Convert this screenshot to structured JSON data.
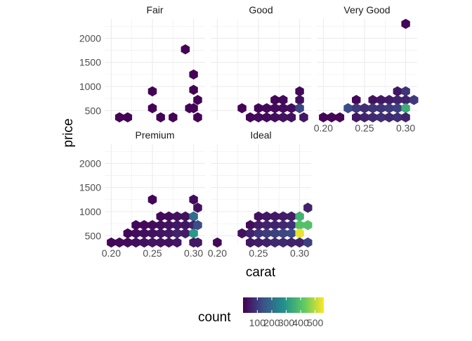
{
  "chart_data": {
    "type": "hexbin",
    "facet_variable": "cut",
    "facets": [
      {
        "label": "Fair",
        "points": [
          [
            0.21,
            360,
            4
          ],
          [
            0.22,
            360,
            6
          ],
          [
            0.25,
            900,
            3
          ],
          [
            0.25,
            550,
            4
          ],
          [
            0.26,
            360,
            5
          ],
          [
            0.275,
            360,
            5
          ],
          [
            0.29,
            1770,
            6
          ],
          [
            0.3,
            1250,
            5
          ],
          [
            0.3,
            930,
            4
          ],
          [
            0.295,
            550,
            6
          ],
          [
            0.3,
            550,
            8
          ],
          [
            0.305,
            720,
            5
          ],
          [
            0.305,
            360,
            5
          ]
        ]
      },
      {
        "label": "Good",
        "points": [
          [
            0.23,
            550,
            8
          ],
          [
            0.24,
            360,
            10
          ],
          [
            0.25,
            550,
            12
          ],
          [
            0.25,
            360,
            20
          ],
          [
            0.26,
            550,
            15
          ],
          [
            0.26,
            360,
            18
          ],
          [
            0.27,
            720,
            12
          ],
          [
            0.27,
            550,
            20
          ],
          [
            0.27,
            360,
            25
          ],
          [
            0.28,
            720,
            15
          ],
          [
            0.28,
            550,
            22
          ],
          [
            0.28,
            360,
            30
          ],
          [
            0.29,
            550,
            25
          ],
          [
            0.29,
            360,
            30
          ],
          [
            0.3,
            900,
            15
          ],
          [
            0.3,
            720,
            25
          ],
          [
            0.3,
            550,
            120
          ],
          [
            0.305,
            360,
            40
          ]
        ]
      },
      {
        "label": "Very Good",
        "points": [
          [
            0.2,
            360,
            5
          ],
          [
            0.21,
            360,
            5
          ],
          [
            0.22,
            360,
            8
          ],
          [
            0.23,
            550,
            130
          ],
          [
            0.24,
            720,
            15
          ],
          [
            0.24,
            550,
            100
          ],
          [
            0.24,
            360,
            40
          ],
          [
            0.25,
            550,
            80
          ],
          [
            0.25,
            360,
            60
          ],
          [
            0.26,
            720,
            30
          ],
          [
            0.26,
            550,
            90
          ],
          [
            0.26,
            360,
            70
          ],
          [
            0.27,
            720,
            40
          ],
          [
            0.27,
            550,
            90
          ],
          [
            0.27,
            360,
            80
          ],
          [
            0.28,
            720,
            50
          ],
          [
            0.28,
            550,
            100
          ],
          [
            0.28,
            360,
            70
          ],
          [
            0.29,
            900,
            40
          ],
          [
            0.29,
            720,
            60
          ],
          [
            0.29,
            550,
            110
          ],
          [
            0.29,
            360,
            80
          ],
          [
            0.3,
            2300,
            10
          ],
          [
            0.3,
            900,
            90
          ],
          [
            0.3,
            720,
            60
          ],
          [
            0.3,
            550,
            350
          ],
          [
            0.3,
            360,
            60
          ],
          [
            0.31,
            720,
            100
          ]
        ]
      },
      {
        "label": "Premium",
        "points": [
          [
            0.2,
            360,
            10
          ],
          [
            0.21,
            360,
            15
          ],
          [
            0.22,
            550,
            12
          ],
          [
            0.22,
            360,
            20
          ],
          [
            0.23,
            720,
            10
          ],
          [
            0.23,
            550,
            20
          ],
          [
            0.23,
            360,
            25
          ],
          [
            0.24,
            720,
            15
          ],
          [
            0.24,
            550,
            25
          ],
          [
            0.24,
            360,
            30
          ],
          [
            0.25,
            1250,
            10
          ],
          [
            0.25,
            720,
            20
          ],
          [
            0.25,
            550,
            30
          ],
          [
            0.25,
            360,
            35
          ],
          [
            0.26,
            900,
            15
          ],
          [
            0.26,
            720,
            25
          ],
          [
            0.26,
            550,
            35
          ],
          [
            0.26,
            360,
            30
          ],
          [
            0.27,
            900,
            20
          ],
          [
            0.27,
            720,
            30
          ],
          [
            0.27,
            550,
            40
          ],
          [
            0.27,
            360,
            30
          ],
          [
            0.28,
            900,
            30
          ],
          [
            0.28,
            720,
            40
          ],
          [
            0.28,
            550,
            60
          ],
          [
            0.28,
            360,
            40
          ],
          [
            0.29,
            900,
            30
          ],
          [
            0.29,
            720,
            35
          ],
          [
            0.29,
            550,
            50
          ],
          [
            0.3,
            1250,
            20
          ],
          [
            0.3,
            900,
            200
          ],
          [
            0.3,
            720,
            60
          ],
          [
            0.3,
            550,
            300
          ],
          [
            0.3,
            360,
            40
          ],
          [
            0.305,
            1080,
            30
          ],
          [
            0.305,
            720,
            130
          ],
          [
            0.305,
            360,
            40
          ]
        ]
      },
      {
        "label": "Ideal",
        "points": [
          [
            0.2,
            360,
            10
          ],
          [
            0.23,
            550,
            30
          ],
          [
            0.24,
            720,
            20
          ],
          [
            0.24,
            550,
            60
          ],
          [
            0.24,
            360,
            40
          ],
          [
            0.25,
            900,
            30
          ],
          [
            0.25,
            720,
            50
          ],
          [
            0.25,
            550,
            90
          ],
          [
            0.25,
            360,
            50
          ],
          [
            0.26,
            900,
            40
          ],
          [
            0.26,
            720,
            60
          ],
          [
            0.26,
            550,
            100
          ],
          [
            0.26,
            360,
            60
          ],
          [
            0.27,
            900,
            40
          ],
          [
            0.27,
            720,
            60
          ],
          [
            0.27,
            550,
            110
          ],
          [
            0.27,
            360,
            70
          ],
          [
            0.28,
            900,
            50
          ],
          [
            0.28,
            720,
            70
          ],
          [
            0.28,
            550,
            120
          ],
          [
            0.28,
            360,
            70
          ],
          [
            0.29,
            900,
            50
          ],
          [
            0.29,
            720,
            80
          ],
          [
            0.29,
            550,
            130
          ],
          [
            0.29,
            360,
            60
          ],
          [
            0.3,
            900,
            360
          ],
          [
            0.3,
            720,
            400
          ],
          [
            0.3,
            550,
            540
          ],
          [
            0.3,
            360,
            60
          ],
          [
            0.31,
            1080,
            60
          ],
          [
            0.31,
            720,
            400
          ],
          [
            0.31,
            360,
            110
          ]
        ]
      }
    ],
    "xlabel": "carat",
    "ylabel": "price",
    "x_ticks": [
      "0.20",
      "0.25",
      "0.30"
    ],
    "y_ticks": [
      "500",
      "1000",
      "1500",
      "2000"
    ],
    "xlim": [
      0.192,
      0.314
    ],
    "ylim": [
      300,
      2400
    ],
    "legend": {
      "title": "count",
      "ticks": [
        "100",
        "200",
        "300",
        "400",
        "500"
      ],
      "range": [
        1,
        560
      ],
      "colors": [
        "#440154",
        "#3b528b",
        "#21908c",
        "#5dc963",
        "#fde725"
      ],
      "position": "bottom"
    },
    "grid": true
  }
}
